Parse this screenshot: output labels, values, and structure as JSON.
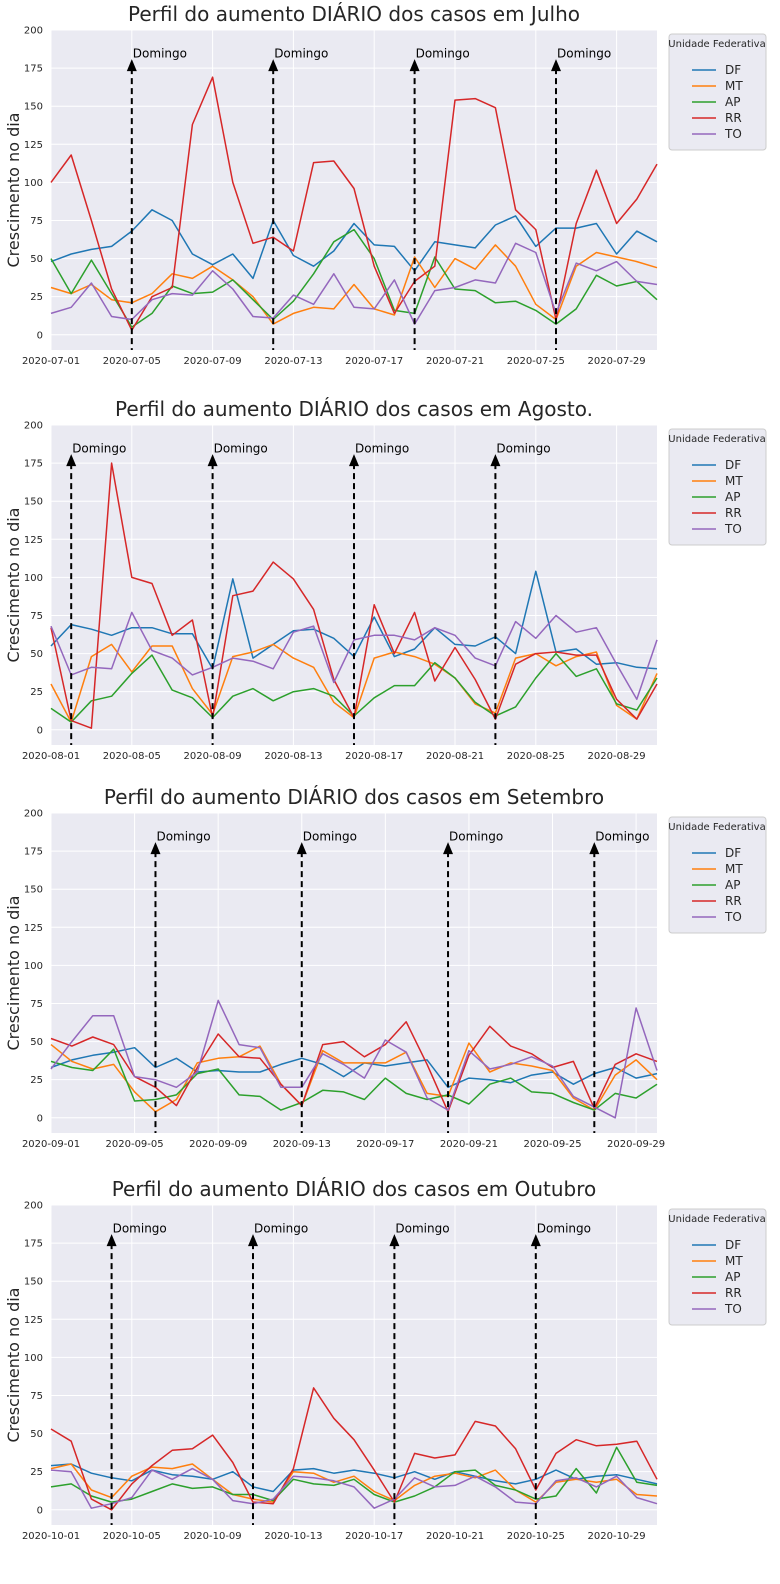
{
  "legend_title": "Unidade Federativa",
  "annotation_label": "Domingo",
  "series_colors": {
    "DF": "#1f77b4",
    "MT": "#ff7f0e",
    "AP": "#2ca02c",
    "RR": "#d62728",
    "TO": "#9467bd"
  },
  "chart_data": [
    {
      "type": "line",
      "title": "Perfil do aumento DIÁRIO dos casos em Julho",
      "xlabel": "",
      "ylabel": "Crescimento no dia",
      "ylim": [
        -10,
        200
      ],
      "yticks": [
        0,
        25,
        50,
        75,
        100,
        125,
        150,
        175,
        200
      ],
      "x_start": "2020-07-01",
      "x_end": "2020-07-31",
      "xtick_labels": [
        "2020-07-01",
        "2020-07-05",
        "2020-07-09",
        "2020-07-13",
        "2020-07-17",
        "2020-07-21",
        "2020-07-25",
        "2020-07-29"
      ],
      "sundays": [
        "2020-07-05",
        "2020-07-12",
        "2020-07-19",
        "2020-07-26"
      ],
      "legend_position": "outside-right",
      "grid": true,
      "series": [
        {
          "name": "DF",
          "values": [
            48,
            53,
            56,
            58,
            68,
            82,
            75,
            53,
            46,
            53,
            37,
            75,
            52,
            45,
            55,
            73,
            59,
            58,
            42,
            61,
            59,
            57,
            72,
            78,
            58,
            70,
            70,
            73,
            53,
            68,
            61
          ]
        },
        {
          "name": "MT",
          "values": [
            31,
            27,
            33,
            23,
            21,
            27,
            40,
            37,
            45,
            36,
            25,
            7,
            14,
            18,
            17,
            33,
            17,
            13,
            51,
            31,
            50,
            43,
            59,
            45,
            20,
            10,
            45,
            54,
            51,
            48,
            44
          ]
        },
        {
          "name": "AP",
          "values": [
            50,
            27,
            49,
            27,
            5,
            14,
            32,
            27,
            28,
            36,
            23,
            10,
            22,
            40,
            61,
            69,
            50,
            16,
            14,
            51,
            30,
            29,
            21,
            22,
            16,
            7,
            17,
            39,
            32,
            35,
            23
          ]
        },
        {
          "name": "RR",
          "values": [
            100,
            118,
            75,
            30,
            3,
            25,
            31,
            138,
            169,
            100,
            60,
            64,
            55,
            113,
            114,
            96,
            45,
            14,
            35,
            45,
            154,
            155,
            149,
            82,
            69,
            10,
            73,
            108,
            73,
            89,
            112
          ]
        },
        {
          "name": "TO",
          "values": [
            14,
            18,
            34,
            12,
            10,
            23,
            27,
            26,
            42,
            30,
            12,
            11,
            26,
            20,
            40,
            18,
            17,
            36,
            7,
            29,
            31,
            36,
            34,
            60,
            54,
            14,
            47,
            42,
            48,
            35,
            33
          ]
        }
      ]
    },
    {
      "type": "line",
      "title": "Perfil do aumento DIÁRIO dos casos em Agosto.",
      "xlabel": "",
      "ylabel": "Crescimento no dia",
      "ylim": [
        -10,
        200
      ],
      "yticks": [
        0,
        25,
        50,
        75,
        100,
        125,
        150,
        175,
        200
      ],
      "x_start": "2020-08-01",
      "x_end": "2020-08-31",
      "xtick_labels": [
        "2020-08-01",
        "2020-08-05",
        "2020-08-09",
        "2020-08-13",
        "2020-08-17",
        "2020-08-21",
        "2020-08-25",
        "2020-08-29"
      ],
      "sundays": [
        "2020-08-02",
        "2020-08-09",
        "2020-08-16",
        "2020-08-23"
      ],
      "legend_position": "outside-right",
      "grid": true,
      "series": [
        {
          "name": "DF",
          "values": [
            55,
            69,
            66,
            62,
            67,
            67,
            63,
            63,
            40,
            99,
            47,
            56,
            65,
            66,
            60,
            48,
            74,
            48,
            53,
            67,
            56,
            55,
            61,
            50,
            104,
            51,
            53,
            43,
            44,
            41,
            40
          ]
        },
        {
          "name": "MT",
          "values": [
            30,
            5,
            48,
            56,
            38,
            55,
            55,
            27,
            10,
            48,
            51,
            56,
            47,
            41,
            18,
            8,
            47,
            51,
            48,
            43,
            34,
            17,
            11,
            47,
            50,
            42,
            48,
            51,
            16,
            7,
            37
          ]
        },
        {
          "name": "AP",
          "values": [
            14,
            5,
            19,
            22,
            37,
            49,
            26,
            21,
            8,
            22,
            27,
            19,
            25,
            27,
            22,
            9,
            21,
            29,
            29,
            44,
            34,
            18,
            9,
            15,
            34,
            50,
            35,
            40,
            17,
            13,
            34
          ]
        },
        {
          "name": "RR",
          "values": [
            67,
            6,
            1,
            175,
            100,
            96,
            62,
            72,
            8,
            88,
            91,
            110,
            99,
            79,
            33,
            8,
            82,
            50,
            77,
            32,
            54,
            33,
            7,
            43,
            50,
            51,
            49,
            49,
            20,
            7,
            30
          ]
        },
        {
          "name": "TO",
          "values": [
            68,
            36,
            41,
            40,
            77,
            52,
            47,
            36,
            41,
            47,
            45,
            40,
            64,
            68,
            31,
            59,
            62,
            62,
            59,
            67,
            62,
            47,
            42,
            71,
            60,
            75,
            64,
            67,
            43,
            20,
            59
          ]
        }
      ]
    },
    {
      "type": "line",
      "title": "Perfil do aumento DIÁRIO dos casos em Setembro",
      "xlabel": "",
      "ylabel": "Crescimento no dia",
      "ylim": [
        -10,
        200
      ],
      "yticks": [
        0,
        25,
        50,
        75,
        100,
        125,
        150,
        175,
        200
      ],
      "x_start": "2020-09-01",
      "x_end": "2020-09-30",
      "xtick_labels": [
        "2020-09-01",
        "2020-09-05",
        "2020-09-09",
        "2020-09-13",
        "2020-09-17",
        "2020-09-21",
        "2020-09-25",
        "2020-09-29"
      ],
      "sundays": [
        "2020-09-06",
        "2020-09-13",
        "2020-09-20",
        "2020-09-27"
      ],
      "legend_position": "outside-right",
      "grid": true,
      "series": [
        {
          "name": "DF",
          "values": [
            33,
            38,
            41,
            43,
            46,
            33,
            39,
            30,
            31,
            30,
            30,
            35,
            39,
            35,
            27,
            36,
            34,
            36,
            38,
            20,
            26,
            25,
            23,
            28,
            30,
            22,
            29,
            33,
            26,
            29
          ]
        },
        {
          "name": "MT",
          "values": [
            48,
            37,
            32,
            35,
            17,
            4,
            12,
            36,
            39,
            40,
            47,
            22,
            8,
            44,
            36,
            36,
            36,
            43,
            16,
            14,
            49,
            30,
            36,
            34,
            31,
            13,
            5,
            28,
            38,
            25
          ]
        },
        {
          "name": "AP",
          "values": [
            37,
            33,
            31,
            45,
            11,
            12,
            15,
            29,
            32,
            15,
            14,
            5,
            10,
            18,
            17,
            12,
            26,
            16,
            12,
            15,
            9,
            22,
            26,
            17,
            16,
            10,
            5,
            16,
            13,
            22
          ]
        },
        {
          "name": "RR",
          "values": [
            52,
            47,
            53,
            48,
            27,
            20,
            8,
            33,
            55,
            40,
            39,
            22,
            8,
            48,
            50,
            40,
            48,
            63,
            35,
            4,
            41,
            60,
            47,
            42,
            33,
            37,
            6,
            35,
            42,
            37
          ]
        },
        {
          "name": "TO",
          "values": [
            32,
            50,
            67,
            67,
            27,
            25,
            20,
            30,
            77,
            48,
            46,
            20,
            20,
            42,
            35,
            26,
            51,
            43,
            13,
            5,
            44,
            32,
            35,
            40,
            34,
            14,
            7,
            0,
            72,
            31
          ]
        }
      ]
    },
    {
      "type": "line",
      "title": "Perfil do aumento DIÁRIO dos casos em Outubro",
      "xlabel": "",
      "ylabel": "Crescimento no dia",
      "ylim": [
        -10,
        200
      ],
      "yticks": [
        0,
        25,
        50,
        75,
        100,
        125,
        150,
        175,
        200
      ],
      "x_start": "2020-10-01",
      "x_end": "2020-10-31",
      "xtick_labels": [
        "2020-10-01",
        "2020-10-05",
        "2020-10-09",
        "2020-10-13",
        "2020-10-17",
        "2020-10-21",
        "2020-10-25",
        "2020-10-29"
      ],
      "sundays": [
        "2020-10-04",
        "2020-10-11",
        "2020-10-18",
        "2020-10-25"
      ],
      "legend_position": "outside-right",
      "grid": true,
      "series": [
        {
          "name": "DF",
          "values": [
            29,
            30,
            24,
            21,
            19,
            26,
            23,
            22,
            20,
            25,
            15,
            12,
            26,
            27,
            24,
            26,
            24,
            21,
            25,
            20,
            25,
            22,
            19,
            17,
            20,
            26,
            20,
            22,
            23,
            20,
            17
          ]
        },
        {
          "name": "MT",
          "values": [
            27,
            30,
            13,
            8,
            22,
            28,
            27,
            30,
            20,
            10,
            7,
            5,
            25,
            24,
            18,
            22,
            12,
            6,
            16,
            22,
            24,
            21,
            26,
            13,
            5,
            18,
            20,
            18,
            20,
            10,
            9
          ]
        },
        {
          "name": "AP",
          "values": [
            15,
            17,
            9,
            5,
            7,
            12,
            17,
            14,
            15,
            10,
            10,
            6,
            20,
            17,
            16,
            20,
            10,
            5,
            9,
            15,
            25,
            26,
            16,
            13,
            7,
            9,
            27,
            11,
            41,
            18,
            16
          ]
        },
        {
          "name": "RR",
          "values": [
            53,
            45,
            7,
            0,
            17,
            29,
            39,
            40,
            49,
            31,
            5,
            4,
            27,
            80,
            60,
            46,
            26,
            5,
            37,
            34,
            36,
            58,
            55,
            40,
            13,
            37,
            46,
            42,
            43,
            45,
            20
          ]
        },
        {
          "name": "TO",
          "values": [
            26,
            25,
            1,
            4,
            8,
            26,
            20,
            27,
            20,
            6,
            4,
            7,
            22,
            21,
            19,
            15,
            1,
            7,
            21,
            15,
            16,
            22,
            15,
            5,
            4,
            19,
            21,
            15,
            22,
            8,
            4
          ]
        }
      ]
    }
  ]
}
